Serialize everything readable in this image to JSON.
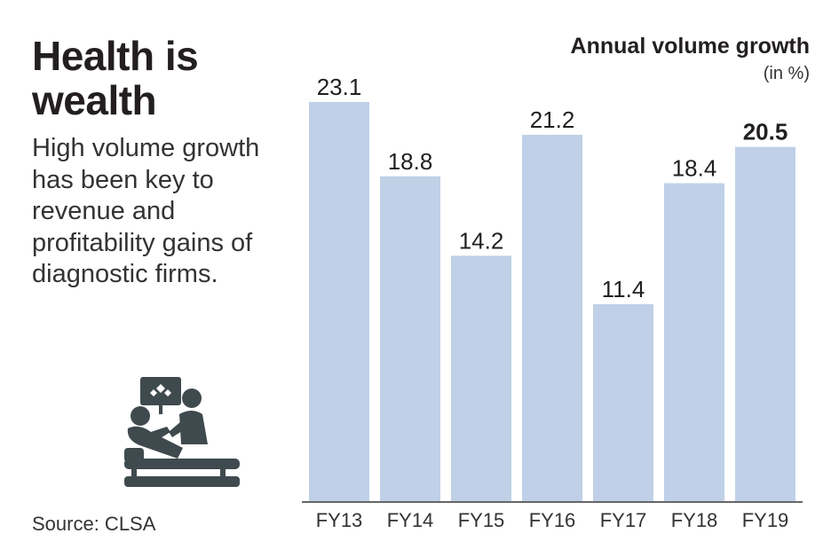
{
  "headline": "Health is wealth",
  "subtext": "High volume growth has been key to revenue and profitability gains of diagnostic firms.",
  "source": "Source: CLSA",
  "icon_name": "patient-diagnostic-scan-icon",
  "colors": {
    "bar": "#bfd0e7",
    "axis": "#333333",
    "icon": "#3f4a4f",
    "text": "#231f20"
  },
  "chart_data": {
    "type": "bar",
    "title": "Annual volume growth",
    "unit": "(in %)",
    "categories": [
      "FY13",
      "FY14",
      "FY15",
      "FY16",
      "FY17",
      "FY18",
      "FY19"
    ],
    "values": [
      23.1,
      18.8,
      14.2,
      21.2,
      11.4,
      18.4,
      20.5
    ],
    "value_labels": [
      "23.1",
      "18.8",
      "14.2",
      "21.2",
      "11.4",
      "18.4",
      "20.5"
    ],
    "highlight_index": 6,
    "ylim": [
      0,
      23.1
    ],
    "xlabel": "",
    "ylabel": "",
    "grid": false
  }
}
